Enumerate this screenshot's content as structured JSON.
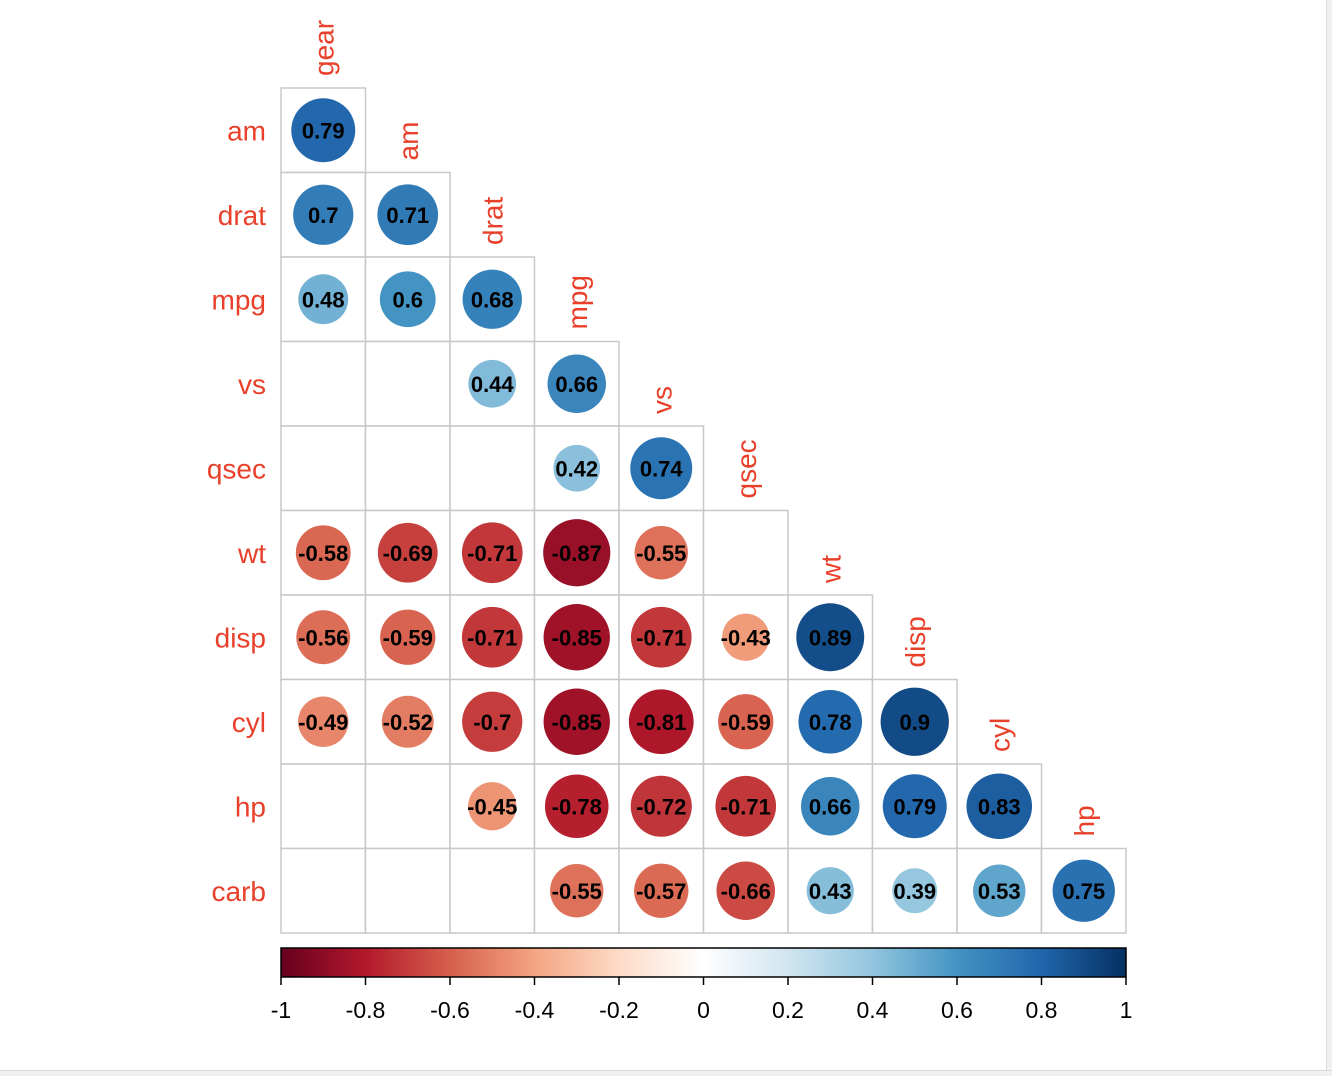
{
  "chart_data": {
    "type": "heatmap",
    "style": "corrplot-circle-lower-triangle-significant-only",
    "variables": [
      "gear",
      "am",
      "drat",
      "mpg",
      "vs",
      "qsec",
      "wt",
      "disp",
      "cyl",
      "hp",
      "carb"
    ],
    "row_labels": [
      "am",
      "drat",
      "mpg",
      "vs",
      "qsec",
      "wt",
      "disp",
      "cyl",
      "hp",
      "carb"
    ],
    "diagonal_labels": [
      "gear",
      "am",
      "drat",
      "mpg",
      "vs",
      "qsec",
      "wt",
      "disp",
      "cyl",
      "hp"
    ],
    "rows": [
      [
        0.79
      ],
      [
        0.7,
        0.71
      ],
      [
        0.48,
        0.6,
        0.68
      ],
      [
        null,
        null,
        0.44,
        0.66
      ],
      [
        null,
        null,
        null,
        0.42,
        0.74
      ],
      [
        -0.58,
        -0.69,
        -0.71,
        -0.87,
        -0.55,
        null
      ],
      [
        -0.56,
        -0.59,
        -0.71,
        -0.85,
        -0.71,
        -0.43,
        0.89
      ],
      [
        -0.49,
        -0.52,
        -0.7,
        -0.85,
        -0.81,
        -0.59,
        0.78,
        0.9
      ],
      [
        null,
        null,
        -0.45,
        -0.78,
        -0.72,
        -0.71,
        0.66,
        0.79,
        0.83
      ],
      [
        null,
        null,
        null,
        -0.55,
        -0.57,
        -0.66,
        0.43,
        0.39,
        0.53,
        0.75
      ]
    ],
    "colorbar": {
      "range": [
        -1,
        1
      ],
      "ticks": [
        -1,
        -0.8,
        -0.6,
        -0.4,
        -0.2,
        0,
        0.2,
        0.4,
        0.6,
        0.8,
        1
      ],
      "tick_labels": [
        "-1",
        "-0.8",
        "-0.6",
        "-0.4",
        "-0.2",
        "0",
        "0.2",
        "0.4",
        "0.6",
        "0.8",
        "1"
      ],
      "orientation": "horizontal",
      "placement": "bottom"
    },
    "label_color": "#e8402a",
    "colormap": [
      "#67001f",
      "#b2182b",
      "#d6604d",
      "#f4a582",
      "#fddbc7",
      "#ffffff",
      "#d1e5f0",
      "#92c5de",
      "#4393c3",
      "#2166ac",
      "#053061"
    ]
  }
}
